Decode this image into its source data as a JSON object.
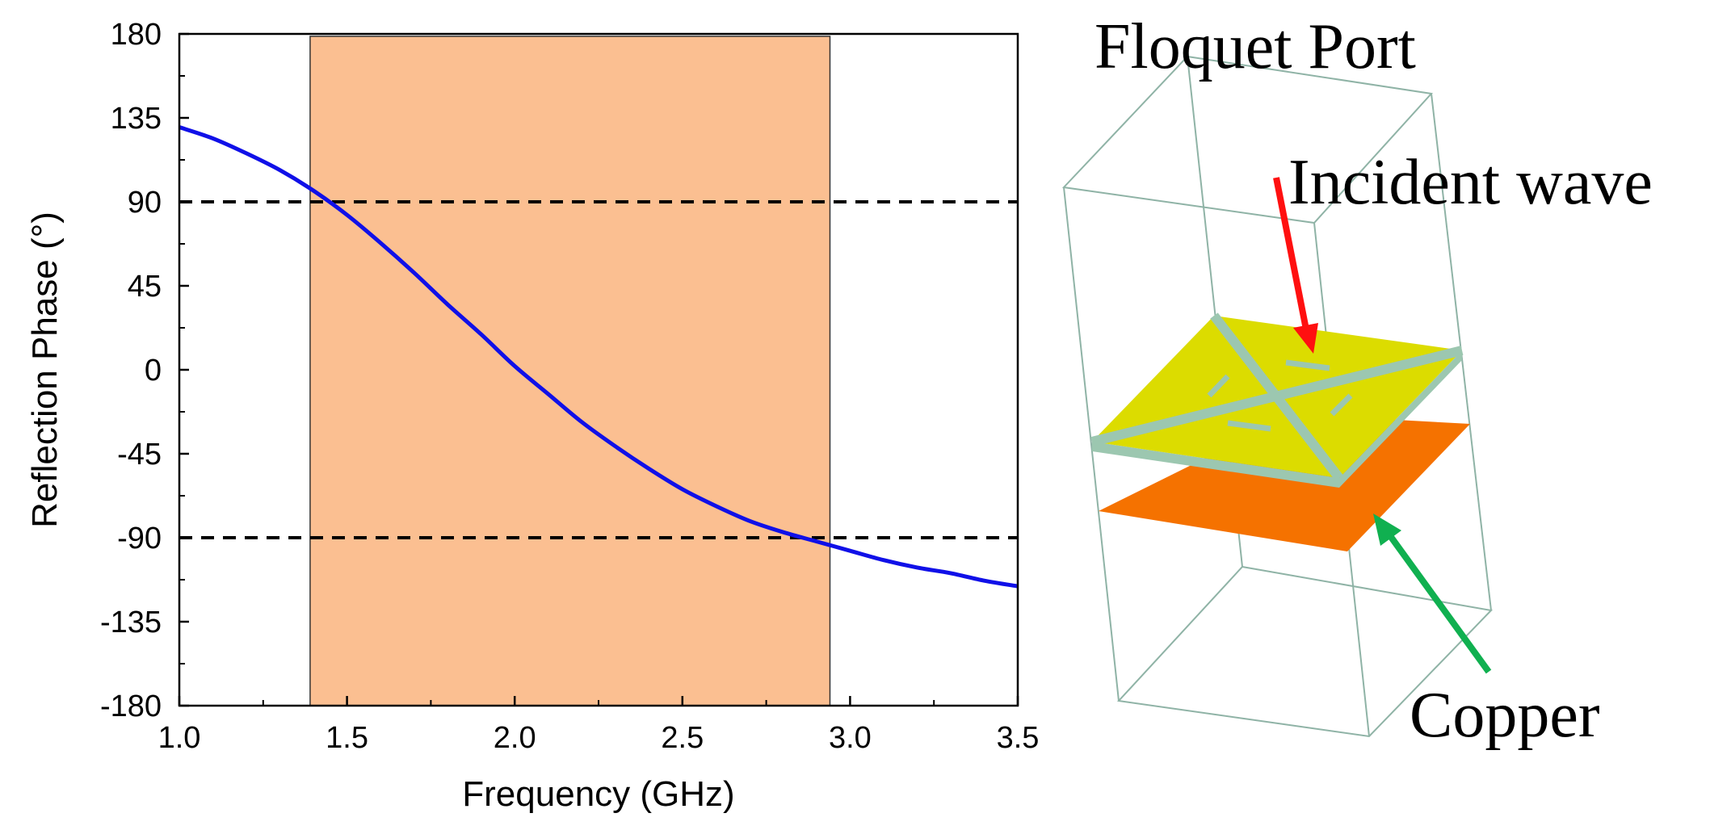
{
  "chart_data": {
    "type": "line",
    "xlabel": "Frequency (GHz)",
    "ylabel": "Reflection Phase (°)",
    "xlim": [
      1.0,
      3.5
    ],
    "ylim": [
      -180,
      180
    ],
    "x_ticks": [
      "1.0",
      "1.5",
      "2.0",
      "2.5",
      "3.0",
      "3.5"
    ],
    "y_ticks": [
      "180",
      "135",
      "90",
      "45",
      "0",
      "-45",
      "-90",
      "-135",
      "-180"
    ],
    "grid": false,
    "reference_lines": [
      {
        "axis": "y",
        "value": 90,
        "style": "dashed"
      },
      {
        "axis": "y",
        "value": -90,
        "style": "dashed"
      }
    ],
    "band": {
      "x_start": 1.39,
      "x_end": 2.94,
      "color": "#fbbf91"
    },
    "series": [
      {
        "name": "Reflection Phase",
        "color": "#1010e8",
        "x": [
          1.0,
          1.1,
          1.2,
          1.3,
          1.4,
          1.5,
          1.6,
          1.7,
          1.8,
          1.9,
          2.0,
          2.1,
          2.2,
          2.3,
          2.4,
          2.5,
          2.6,
          2.7,
          2.8,
          2.9,
          3.0,
          3.1,
          3.2,
          3.3,
          3.4,
          3.5
        ],
        "y": [
          130,
          124,
          116,
          107,
          96,
          83,
          68,
          52,
          35,
          19,
          2,
          -13,
          -28,
          -41,
          -53,
          -64,
          -73,
          -81,
          -87,
          -92,
          -97,
          -102,
          -106,
          -109,
          -113,
          -116
        ]
      }
    ]
  },
  "diagram": {
    "port_label": "Floquet Port",
    "incident_label": "Incident wave",
    "copper_label": "Copper",
    "colors": {
      "box_edge": "#8fb3a6",
      "patch": "#dcdc00",
      "slot": "#9cc7b0",
      "copper": "#f57200",
      "incident_arrow": "#ff1010",
      "copper_arrow": "#10b050"
    }
  }
}
